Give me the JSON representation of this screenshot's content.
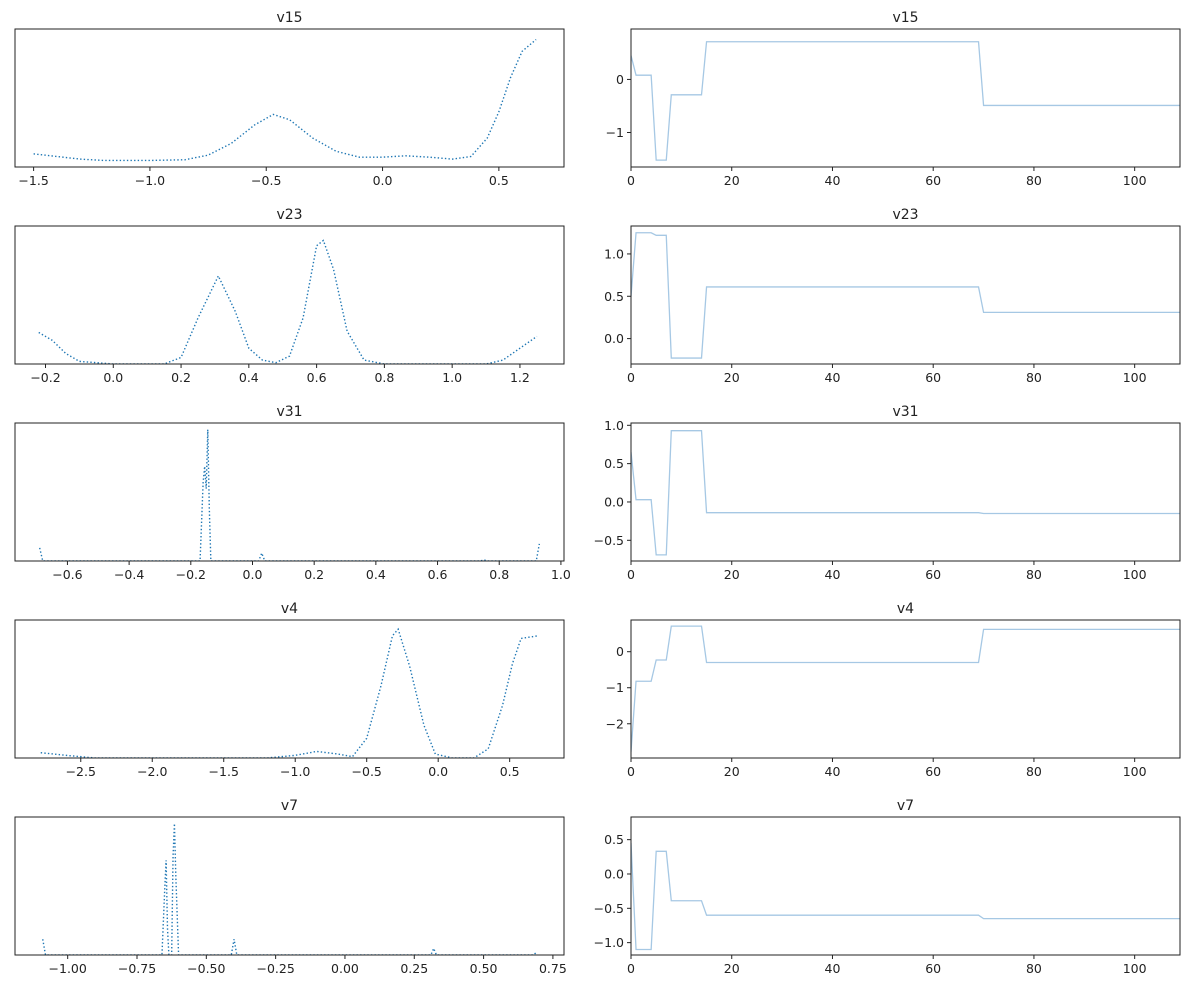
{
  "colors": {
    "kde": "#1f77b4",
    "trace": "#a6c8e4",
    "axis": "#222222"
  },
  "chart_data": [
    {
      "type": "line",
      "title": "v15",
      "kind": "density",
      "line_style": "dotted",
      "xlim": [
        -1.58,
        0.78
      ],
      "ylim": [
        0,
        1.05
      ],
      "yticks_visible": false,
      "xticks": [
        {
          "v": -1.5,
          "label": "−1.5"
        },
        {
          "v": -1.0,
          "label": "−1.0"
        },
        {
          "v": -0.5,
          "label": "−0.5"
        },
        {
          "v": 0.0,
          "label": "0.0"
        },
        {
          "v": 0.5,
          "label": "0.5"
        }
      ],
      "points": [
        [
          -1.5,
          0.1
        ],
        [
          -1.4,
          0.08
        ],
        [
          -1.3,
          0.06
        ],
        [
          -1.2,
          0.05
        ],
        [
          -1.0,
          0.05
        ],
        [
          -0.85,
          0.055
        ],
        [
          -0.75,
          0.09
        ],
        [
          -0.65,
          0.18
        ],
        [
          -0.55,
          0.32
        ],
        [
          -0.47,
          0.4
        ],
        [
          -0.4,
          0.36
        ],
        [
          -0.3,
          0.22
        ],
        [
          -0.2,
          0.12
        ],
        [
          -0.1,
          0.075
        ],
        [
          0.0,
          0.075
        ],
        [
          0.1,
          0.085
        ],
        [
          0.2,
          0.075
        ],
        [
          0.3,
          0.06
        ],
        [
          0.38,
          0.08
        ],
        [
          0.45,
          0.22
        ],
        [
          0.5,
          0.42
        ],
        [
          0.55,
          0.68
        ],
        [
          0.6,
          0.88
        ],
        [
          0.66,
          0.97
        ]
      ]
    },
    {
      "type": "line",
      "title": "v15",
      "kind": "trace",
      "line_style": "solid",
      "xlim": [
        0,
        109
      ],
      "ylim": [
        -1.65,
        0.95
      ],
      "xticks": [
        {
          "v": 0,
          "label": "0"
        },
        {
          "v": 20,
          "label": "20"
        },
        {
          "v": 40,
          "label": "40"
        },
        {
          "v": 60,
          "label": "60"
        },
        {
          "v": 80,
          "label": "80"
        },
        {
          "v": 100,
          "label": "100"
        }
      ],
      "yticks": [
        {
          "v": 0,
          "label": "0"
        },
        {
          "v": -1,
          "label": "−1"
        }
      ],
      "points": [
        [
          0,
          0.45
        ],
        [
          1,
          0.08
        ],
        [
          4,
          0.08
        ],
        [
          5,
          -1.52
        ],
        [
          7,
          -1.52
        ],
        [
          8,
          -0.29
        ],
        [
          14,
          -0.29
        ],
        [
          15,
          0.71
        ],
        [
          69,
          0.71
        ],
        [
          70,
          -0.49
        ],
        [
          109,
          -0.49
        ]
      ]
    },
    {
      "type": "line",
      "title": "v23",
      "kind": "density",
      "line_style": "dotted",
      "xlim": [
        -0.29,
        1.33
      ],
      "ylim": [
        0,
        1.05
      ],
      "yticks_visible": false,
      "xticks": [
        {
          "v": -0.2,
          "label": "−0.2"
        },
        {
          "v": 0.0,
          "label": "0.0"
        },
        {
          "v": 0.2,
          "label": "0.2"
        },
        {
          "v": 0.4,
          "label": "0.4"
        },
        {
          "v": 0.6,
          "label": "0.6"
        },
        {
          "v": 0.8,
          "label": "0.8"
        },
        {
          "v": 1.0,
          "label": "1.0"
        },
        {
          "v": 1.2,
          "label": "1.2"
        }
      ],
      "points": [
        [
          -0.22,
          0.24
        ],
        [
          -0.18,
          0.18
        ],
        [
          -0.14,
          0.08
        ],
        [
          -0.1,
          0.02
        ],
        [
          0.0,
          0.0
        ],
        [
          0.15,
          0.0
        ],
        [
          0.2,
          0.05
        ],
        [
          0.25,
          0.35
        ],
        [
          0.31,
          0.67
        ],
        [
          0.36,
          0.4
        ],
        [
          0.4,
          0.12
        ],
        [
          0.44,
          0.03
        ],
        [
          0.48,
          0.01
        ],
        [
          0.52,
          0.06
        ],
        [
          0.56,
          0.35
        ],
        [
          0.6,
          0.9
        ],
        [
          0.62,
          0.94
        ],
        [
          0.65,
          0.72
        ],
        [
          0.69,
          0.25
        ],
        [
          0.74,
          0.03
        ],
        [
          0.8,
          0.0
        ],
        [
          1.1,
          0.0
        ],
        [
          1.15,
          0.03
        ],
        [
          1.2,
          0.12
        ],
        [
          1.25,
          0.21
        ]
      ]
    },
    {
      "type": "line",
      "title": "v23",
      "kind": "trace",
      "line_style": "solid",
      "xlim": [
        0,
        109
      ],
      "ylim": [
        -0.3,
        1.33
      ],
      "xticks": [
        {
          "v": 0,
          "label": "0"
        },
        {
          "v": 20,
          "label": "20"
        },
        {
          "v": 40,
          "label": "40"
        },
        {
          "v": 60,
          "label": "60"
        },
        {
          "v": 80,
          "label": "80"
        },
        {
          "v": 100,
          "label": "100"
        }
      ],
      "yticks": [
        {
          "v": 1.0,
          "label": "1.0"
        },
        {
          "v": 0.5,
          "label": "0.5"
        },
        {
          "v": 0.0,
          "label": "0.0"
        }
      ],
      "points": [
        [
          0,
          0.5
        ],
        [
          1,
          1.25
        ],
        [
          4,
          1.25
        ],
        [
          5,
          1.22
        ],
        [
          7,
          1.22
        ],
        [
          8,
          -0.23
        ],
        [
          14,
          -0.23
        ],
        [
          15,
          0.61
        ],
        [
          69,
          0.61
        ],
        [
          70,
          0.31
        ],
        [
          109,
          0.31
        ]
      ]
    },
    {
      "type": "line",
      "title": "v31",
      "kind": "density",
      "line_style": "dotted",
      "xlim": [
        -0.77,
        1.01
      ],
      "ylim": [
        0,
        1.05
      ],
      "yticks_visible": false,
      "xticks": [
        {
          "v": -0.6,
          "label": "−0.6"
        },
        {
          "v": -0.4,
          "label": "−0.4"
        },
        {
          "v": -0.2,
          "label": "−0.2"
        },
        {
          "v": 0.0,
          "label": "0.0"
        },
        {
          "v": 0.2,
          "label": "0.2"
        },
        {
          "v": 0.4,
          "label": "0.4"
        },
        {
          "v": 0.6,
          "label": "0.6"
        },
        {
          "v": 0.8,
          "label": "0.8"
        },
        {
          "v": 1.0,
          "label": "1.0"
        }
      ],
      "points": [
        [
          -0.69,
          0.1
        ],
        [
          -0.68,
          0.0
        ],
        [
          -0.17,
          0.0
        ],
        [
          -0.16,
          0.6
        ],
        [
          -0.155,
          0.72
        ],
        [
          -0.15,
          0.55
        ],
        [
          -0.145,
          1.0
        ],
        [
          -0.14,
          0.4
        ],
        [
          -0.135,
          0.0
        ],
        [
          0.02,
          0.0
        ],
        [
          0.03,
          0.06
        ],
        [
          0.04,
          0.0
        ],
        [
          0.74,
          0.0
        ],
        [
          0.75,
          0.01
        ],
        [
          0.76,
          0.0
        ],
        [
          0.92,
          0.0
        ],
        [
          0.93,
          0.13
        ]
      ]
    },
    {
      "type": "line",
      "title": "v31",
      "kind": "trace",
      "line_style": "solid",
      "xlim": [
        0,
        109
      ],
      "ylim": [
        -0.77,
        1.03
      ],
      "xticks": [
        {
          "v": 0,
          "label": "0"
        },
        {
          "v": 20,
          "label": "20"
        },
        {
          "v": 40,
          "label": "40"
        },
        {
          "v": 60,
          "label": "60"
        },
        {
          "v": 80,
          "label": "80"
        },
        {
          "v": 100,
          "label": "100"
        }
      ],
      "yticks": [
        {
          "v": 1.0,
          "label": "1.0"
        },
        {
          "v": 0.5,
          "label": "0.5"
        },
        {
          "v": 0.0,
          "label": "0.0"
        },
        {
          "v": -0.5,
          "label": "−0.5"
        }
      ],
      "points": [
        [
          0,
          0.65
        ],
        [
          1,
          0.03
        ],
        [
          4,
          0.03
        ],
        [
          5,
          -0.69
        ],
        [
          7,
          -0.69
        ],
        [
          8,
          0.93
        ],
        [
          14,
          0.93
        ],
        [
          15,
          -0.14
        ],
        [
          69,
          -0.14
        ],
        [
          70,
          -0.15
        ],
        [
          109,
          -0.15
        ]
      ]
    },
    {
      "type": "line",
      "title": "v4",
      "kind": "density",
      "line_style": "dotted",
      "xlim": [
        -2.96,
        0.88
      ],
      "ylim": [
        0,
        1.05
      ],
      "yticks_visible": false,
      "xticks": [
        {
          "v": -2.5,
          "label": "−2.5"
        },
        {
          "v": -2.0,
          "label": "−2.0"
        },
        {
          "v": -1.5,
          "label": "−1.5"
        },
        {
          "v": -1.0,
          "label": "−1.0"
        },
        {
          "v": -0.5,
          "label": "−0.5"
        },
        {
          "v": 0.0,
          "label": "0.0"
        },
        {
          "v": 0.5,
          "label": "0.5"
        }
      ],
      "points": [
        [
          -2.78,
          0.04
        ],
        [
          -2.6,
          0.02
        ],
        [
          -2.4,
          0.0
        ],
        [
          -1.2,
          0.0
        ],
        [
          -1.0,
          0.02
        ],
        [
          -0.85,
          0.05
        ],
        [
          -0.7,
          0.03
        ],
        [
          -0.6,
          0.01
        ],
        [
          -0.5,
          0.15
        ],
        [
          -0.4,
          0.55
        ],
        [
          -0.32,
          0.93
        ],
        [
          -0.28,
          0.98
        ],
        [
          -0.2,
          0.7
        ],
        [
          -0.1,
          0.25
        ],
        [
          -0.02,
          0.03
        ],
        [
          0.1,
          0.0
        ],
        [
          0.25,
          0.0
        ],
        [
          0.35,
          0.07
        ],
        [
          0.45,
          0.4
        ],
        [
          0.52,
          0.72
        ],
        [
          0.58,
          0.91
        ],
        [
          0.7,
          0.93
        ]
      ]
    },
    {
      "type": "line",
      "title": "v4",
      "kind": "trace",
      "line_style": "solid",
      "xlim": [
        0,
        109
      ],
      "ylim": [
        -2.95,
        0.88
      ],
      "xticks": [
        {
          "v": 0,
          "label": "0"
        },
        {
          "v": 20,
          "label": "20"
        },
        {
          "v": 40,
          "label": "40"
        },
        {
          "v": 60,
          "label": "60"
        },
        {
          "v": 80,
          "label": "80"
        },
        {
          "v": 100,
          "label": "100"
        }
      ],
      "yticks": [
        {
          "v": 0,
          "label": "0"
        },
        {
          "v": -1,
          "label": "−1"
        },
        {
          "v": -2,
          "label": "−2"
        }
      ],
      "points": [
        [
          0,
          -2.78
        ],
        [
          1,
          -0.82
        ],
        [
          4,
          -0.82
        ],
        [
          5,
          -0.23
        ],
        [
          7,
          -0.23
        ],
        [
          8,
          0.71
        ],
        [
          14,
          0.71
        ],
        [
          15,
          -0.3
        ],
        [
          69,
          -0.3
        ],
        [
          70,
          0.62
        ],
        [
          109,
          0.62
        ]
      ]
    },
    {
      "type": "line",
      "title": "v7",
      "kind": "density",
      "line_style": "dotted",
      "xlim": [
        -1.19,
        0.79
      ],
      "ylim": [
        0,
        1.05
      ],
      "yticks_visible": false,
      "xticks": [
        {
          "v": -1.0,
          "label": "−1.00"
        },
        {
          "v": -0.75,
          "label": "−0.75"
        },
        {
          "v": -0.5,
          "label": "−0.50"
        },
        {
          "v": -0.25,
          "label": "−0.25"
        },
        {
          "v": 0.0,
          "label": "0.00"
        },
        {
          "v": 0.25,
          "label": "0.25"
        },
        {
          "v": 0.5,
          "label": "0.50"
        },
        {
          "v": 0.75,
          "label": "0.75"
        }
      ],
      "points": [
        [
          -1.09,
          0.12
        ],
        [
          -1.08,
          0.0
        ],
        [
          -0.66,
          0.0
        ],
        [
          -0.65,
          0.5
        ],
        [
          -0.645,
          0.72
        ],
        [
          -0.64,
          0.2
        ],
        [
          -0.635,
          0.0
        ],
        [
          -0.625,
          0.0
        ],
        [
          -0.62,
          0.75
        ],
        [
          -0.615,
          1.0
        ],
        [
          -0.61,
          0.6
        ],
        [
          -0.6,
          0.0
        ],
        [
          -0.41,
          0.0
        ],
        [
          -0.4,
          0.12
        ],
        [
          -0.39,
          0.0
        ],
        [
          0.31,
          0.0
        ],
        [
          0.32,
          0.05
        ],
        [
          0.33,
          0.0
        ],
        [
          0.68,
          0.0
        ],
        [
          0.69,
          0.02
        ]
      ]
    },
    {
      "type": "line",
      "title": "v7",
      "kind": "trace",
      "line_style": "solid",
      "xlim": [
        0,
        109
      ],
      "ylim": [
        -1.18,
        0.83
      ],
      "xticks": [
        {
          "v": 0,
          "label": "0"
        },
        {
          "v": 20,
          "label": "20"
        },
        {
          "v": 40,
          "label": "40"
        },
        {
          "v": 60,
          "label": "60"
        },
        {
          "v": 80,
          "label": "80"
        },
        {
          "v": 100,
          "label": "100"
        }
      ],
      "yticks": [
        {
          "v": 0.5,
          "label": "0.5"
        },
        {
          "v": 0.0,
          "label": "0.0"
        },
        {
          "v": -0.5,
          "label": "−0.5"
        },
        {
          "v": -1.0,
          "label": "−1.0"
        }
      ],
      "points": [
        [
          0,
          0.45
        ],
        [
          1,
          -1.1
        ],
        [
          4,
          -1.1
        ],
        [
          5,
          0.33
        ],
        [
          7,
          0.33
        ],
        [
          8,
          -0.39
        ],
        [
          14,
          -0.39
        ],
        [
          15,
          -0.6
        ],
        [
          69,
          -0.6
        ],
        [
          70,
          -0.65
        ],
        [
          109,
          -0.65
        ]
      ]
    }
  ]
}
